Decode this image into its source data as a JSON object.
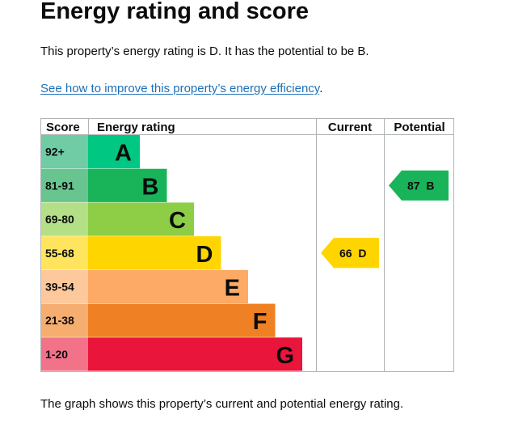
{
  "page": {
    "title": "Energy rating and score",
    "summary": "This property’s energy rating is D. It has the potential to be B.",
    "improve_link": "See how to improve this property’s energy efficiency",
    "improve_link_suffix": ".",
    "footer": "The graph shows this property’s current and potential energy rating."
  },
  "chart_data": {
    "type": "bar",
    "headers": {
      "score": "Score",
      "rating": "Energy rating",
      "current": "Current",
      "potential": "Potential"
    },
    "bands": [
      {
        "letter": "A",
        "score_range": "92+",
        "color": "#00c781",
        "score_bg": "#6fcca5"
      },
      {
        "letter": "B",
        "score_range": "81-91",
        "color": "#19b459",
        "score_bg": "#68c58f"
      },
      {
        "letter": "C",
        "score_range": "69-80",
        "color": "#8dce46",
        "score_bg": "#b3df86"
      },
      {
        "letter": "D",
        "score_range": "55-68",
        "color": "#ffd500",
        "score_bg": "#ffe45e"
      },
      {
        "letter": "E",
        "score_range": "39-54",
        "color": "#fcaa65",
        "score_bg": "#fdc99c"
      },
      {
        "letter": "F",
        "score_range": "21-38",
        "color": "#ef8023",
        "score_bg": "#f5ad70"
      },
      {
        "letter": "G",
        "score_range": "1-20",
        "color": "#e9153b",
        "score_bg": "#f27389"
      }
    ],
    "current": {
      "score": 66,
      "band": "D",
      "label": "66  D",
      "color": "#ffd500"
    },
    "potential": {
      "score": 87,
      "band": "B",
      "label": "87  B",
      "color": "#19b459"
    }
  }
}
